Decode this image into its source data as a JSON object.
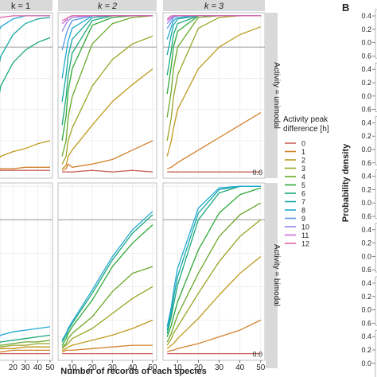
{
  "strips": {
    "top": [
      "k = 1",
      "k = 2",
      "k = 3"
    ],
    "right": [
      "Activity = unimodal",
      "Activity = bimodal"
    ]
  },
  "panel_b_label": "B",
  "panel_b_ylabel": "Probability density",
  "panel_b_ticks": [
    "0.4",
    "0.2",
    "0.0",
    "0.6",
    "0.4",
    "0.2",
    "0.0",
    "0.6",
    "0.4",
    "0.2",
    "0.0",
    "0.6",
    "0.4",
    "0.2",
    "0.0",
    "0.6",
    "0.4",
    "0.2",
    "0.0",
    "0.6",
    "0.4",
    "0.2",
    "0.0",
    "0.6",
    "0.4",
    "0.2",
    "0.0"
  ],
  "legend": {
    "title_line1": "Activity peak",
    "title_line2": "difference [h]",
    "items": [
      {
        "label": "0",
        "color": "#c8635e"
      },
      {
        "label": "1",
        "color": "#d3812c"
      },
      {
        "label": "2",
        "color": "#bf9a1d"
      },
      {
        "label": "3",
        "color": "#9aa423"
      },
      {
        "label": "4",
        "color": "#6aa82a"
      },
      {
        "label": "5",
        "color": "#2ea836"
      },
      {
        "label": "6",
        "color": "#1aa879"
      },
      {
        "label": "7",
        "color": "#16a6a6"
      },
      {
        "label": "8",
        "color": "#22a8d4"
      },
      {
        "label": "9",
        "color": "#5a96e6"
      },
      {
        "label": "10",
        "color": "#9a80e6"
      },
      {
        "label": "11",
        "color": "#cc6cd8"
      },
      {
        "label": "12",
        "color": "#e064a8"
      }
    ]
  },
  "chart_data": {
    "type": "line",
    "xlabel": "Number of records of each species",
    "x_ticks": [
      "10",
      "20",
      "30",
      "40",
      "50"
    ],
    "y_ticks": [
      "0.0"
    ],
    "x": [
      5,
      7,
      8,
      10,
      20,
      30,
      40,
      50
    ],
    "xlim": [
      3,
      52
    ],
    "ylim": [
      -0.04,
      1.02
    ],
    "reference_line": 0.8,
    "panels": [
      {
        "row": "unimodal",
        "col": "k = 1",
        "series": [
          {
            "color": "#1aa879",
            "values": [
              0.35,
              0.42,
              0.46,
              0.55,
              0.7,
              0.78,
              0.83,
              0.86
            ]
          },
          {
            "color": "#16a6a6",
            "values": [
              0.55,
              0.62,
              0.66,
              0.74,
              0.88,
              0.95,
              0.98,
              0.99
            ]
          },
          {
            "color": "#22a8d4",
            "values": [
              0.8,
              0.86,
              0.89,
              0.93,
              0.98,
              1.0,
              1.0,
              1.0
            ]
          },
          {
            "color": "#e064a8",
            "values": [
              0.95,
              0.97,
              0.98,
              0.99,
              1.0,
              1.0,
              1.0,
              1.0
            ]
          },
          {
            "color": "#bf9a1d",
            "values": [
              0.05,
              0.07,
              0.08,
              0.1,
              0.13,
              0.15,
              0.18,
              0.2
            ]
          },
          {
            "color": "#d3812c",
            "values": [
              0.02,
              0.02,
              0.02,
              0.02,
              0.02,
              0.03,
              0.03,
              0.03
            ]
          },
          {
            "color": "#c8635e",
            "values": [
              0.01,
              0.01,
              0.01,
              0.01,
              0.01,
              0.01,
              0.01,
              0.01
            ]
          }
        ]
      },
      {
        "row": "unimodal",
        "col": "k = 2",
        "series": [
          {
            "color": "#c8635e",
            "values": [
              0.0,
              0.0,
              0.0,
              0.0,
              0.01,
              0.0,
              0.01,
              0.0
            ]
          },
          {
            "color": "#d3812c",
            "values": [
              0.01,
              0.02,
              0.05,
              0.03,
              0.05,
              0.08,
              0.14,
              0.2
            ]
          },
          {
            "color": "#bf9a1d",
            "values": [
              0.02,
              0.04,
              0.1,
              0.14,
              0.3,
              0.45,
              0.56,
              0.66
            ]
          },
          {
            "color": "#9aa423",
            "values": [
              0.05,
              0.1,
              0.2,
              0.28,
              0.55,
              0.72,
              0.82,
              0.87
            ]
          },
          {
            "color": "#6aa82a",
            "values": [
              0.1,
              0.2,
              0.35,
              0.48,
              0.82,
              0.95,
              0.99,
              1.0
            ]
          },
          {
            "color": "#2ea836",
            "values": [
              0.2,
              0.36,
              0.52,
              0.66,
              0.94,
              0.99,
              1.0,
              1.0
            ]
          },
          {
            "color": "#1aa879",
            "values": [
              0.3,
              0.48,
              0.62,
              0.76,
              0.97,
              1.0,
              1.0,
              1.0
            ]
          },
          {
            "color": "#16a6a6",
            "values": [
              0.45,
              0.62,
              0.74,
              0.85,
              0.99,
              1.0,
              1.0,
              1.0
            ]
          },
          {
            "color": "#22a8d4",
            "values": [
              0.6,
              0.76,
              0.84,
              0.92,
              1.0,
              1.0,
              1.0,
              1.0
            ]
          },
          {
            "color": "#5a96e6",
            "values": [
              0.78,
              0.88,
              0.92,
              0.97,
              1.0,
              1.0,
              1.0,
              1.0
            ]
          },
          {
            "color": "#9a80e6",
            "values": [
              0.9,
              0.95,
              0.97,
              0.99,
              1.0,
              1.0,
              1.0,
              1.0
            ]
          },
          {
            "color": "#cc6cd8",
            "values": [
              0.95,
              0.97,
              0.99,
              1.0,
              1.0,
              1.0,
              1.0,
              1.0
            ]
          },
          {
            "color": "#e064a8",
            "values": [
              0.97,
              0.98,
              0.99,
              1.0,
              1.0,
              1.0,
              1.0,
              1.0
            ]
          }
        ]
      },
      {
        "row": "unimodal",
        "col": "k = 3",
        "series": [
          {
            "color": "#c8635e",
            "values": [
              0.0,
              0.0,
              0.0,
              0.0,
              0.0,
              0.0,
              0.0,
              0.0
            ]
          },
          {
            "color": "#d3812c",
            "values": [
              0.02,
              0.03,
              0.04,
              0.06,
              0.14,
              0.22,
              0.3,
              0.38
            ]
          },
          {
            "color": "#bf9a1d",
            "values": [
              0.1,
              0.2,
              0.28,
              0.4,
              0.66,
              0.8,
              0.88,
              0.93
            ]
          },
          {
            "color": "#9aa423",
            "values": [
              0.2,
              0.35,
              0.48,
              0.62,
              0.92,
              0.99,
              1.0,
              1.0
            ]
          },
          {
            "color": "#6aa82a",
            "values": [
              0.35,
              0.52,
              0.66,
              0.8,
              0.99,
              1.0,
              1.0,
              1.0
            ]
          },
          {
            "color": "#2ea836",
            "values": [
              0.5,
              0.68,
              0.8,
              0.9,
              1.0,
              1.0,
              1.0,
              1.0
            ]
          },
          {
            "color": "#1aa879",
            "values": [
              0.62,
              0.78,
              0.88,
              0.95,
              1.0,
              1.0,
              1.0,
              1.0
            ]
          },
          {
            "color": "#16a6a6",
            "values": [
              0.75,
              0.88,
              0.94,
              0.98,
              1.0,
              1.0,
              1.0,
              1.0
            ]
          },
          {
            "color": "#22a8d4",
            "values": [
              0.85,
              0.93,
              0.97,
              0.99,
              1.0,
              1.0,
              1.0,
              1.0
            ]
          },
          {
            "color": "#5a96e6",
            "values": [
              0.92,
              0.96,
              0.99,
              1.0,
              1.0,
              1.0,
              1.0,
              1.0
            ]
          },
          {
            "color": "#9a80e6",
            "values": [
              0.95,
              0.98,
              1.0,
              1.0,
              1.0,
              1.0,
              1.0,
              1.0
            ]
          },
          {
            "color": "#cc6cd8",
            "values": [
              0.97,
              0.99,
              1.0,
              1.0,
              1.0,
              1.0,
              1.0,
              1.0
            ]
          },
          {
            "color": "#e064a8",
            "values": [
              0.98,
              1.0,
              1.0,
              1.0,
              1.0,
              1.0,
              1.0,
              1.0
            ]
          }
        ]
      },
      {
        "row": "bimodal",
        "col": "k = 1",
        "series": [
          {
            "color": "#c8635e",
            "values": [
              0.0,
              0.0,
              0.0,
              0.0,
              0.0,
              0.0,
              0.0,
              0.0
            ]
          },
          {
            "color": "#d3812c",
            "values": [
              0.01,
              0.01,
              0.01,
              0.01,
              0.02,
              0.02,
              0.02,
              0.02
            ]
          },
          {
            "color": "#bf9a1d",
            "values": [
              0.02,
              0.02,
              0.03,
              0.03,
              0.03,
              0.04,
              0.04,
              0.04
            ]
          },
          {
            "color": "#9aa423",
            "values": [
              0.03,
              0.03,
              0.04,
              0.04,
              0.05,
              0.05,
              0.06,
              0.06
            ]
          },
          {
            "color": "#6aa82a",
            "values": [
              0.03,
              0.04,
              0.05,
              0.05,
              0.06,
              0.07,
              0.07,
              0.08
            ]
          },
          {
            "color": "#1aa879",
            "values": [
              0.05,
              0.06,
              0.06,
              0.07,
              0.08,
              0.09,
              0.1,
              0.11
            ]
          },
          {
            "color": "#22a8d4",
            "values": [
              0.08,
              0.1,
              0.1,
              0.11,
              0.13,
              0.14,
              0.15,
              0.16
            ]
          }
        ]
      },
      {
        "row": "bimodal",
        "col": "k = 2",
        "series": [
          {
            "color": "#c8635e",
            "values": [
              0.0,
              0.0,
              0.0,
              0.0,
              0.0,
              0.0,
              0.0,
              0.0
            ]
          },
          {
            "color": "#d3812c",
            "values": [
              0.01,
              0.02,
              0.02,
              0.02,
              0.03,
              0.04,
              0.05,
              0.05
            ]
          },
          {
            "color": "#bf9a1d",
            "values": [
              0.02,
              0.03,
              0.04,
              0.05,
              0.08,
              0.11,
              0.15,
              0.2
            ]
          },
          {
            "color": "#9aa423",
            "values": [
              0.03,
              0.05,
              0.06,
              0.09,
              0.15,
              0.24,
              0.33,
              0.4
            ]
          },
          {
            "color": "#6aa82a",
            "values": [
              0.04,
              0.06,
              0.09,
              0.12,
              0.22,
              0.37,
              0.48,
              0.52
            ]
          },
          {
            "color": "#2ea836",
            "values": [
              0.05,
              0.09,
              0.12,
              0.16,
              0.32,
              0.52,
              0.66,
              0.77
            ]
          },
          {
            "color": "#1aa879",
            "values": [
              0.07,
              0.11,
              0.14,
              0.18,
              0.36,
              0.56,
              0.72,
              0.83
            ]
          },
          {
            "color": "#22a8d4",
            "values": [
              0.08,
              0.12,
              0.15,
              0.19,
              0.38,
              0.58,
              0.74,
              0.85
            ]
          }
        ]
      },
      {
        "row": "bimodal",
        "col": "k = 3",
        "series": [
          {
            "color": "#c8635e",
            "values": [
              0.0,
              0.0,
              0.0,
              0.0,
              0.0,
              0.0,
              0.0,
              0.0
            ]
          },
          {
            "color": "#d3812c",
            "values": [
              0.01,
              0.02,
              0.02,
              0.03,
              0.06,
              0.1,
              0.14,
              0.2
            ]
          },
          {
            "color": "#bf9a1d",
            "values": [
              0.03,
              0.05,
              0.06,
              0.09,
              0.21,
              0.35,
              0.48,
              0.58
            ]
          },
          {
            "color": "#9aa423",
            "values": [
              0.05,
              0.09,
              0.12,
              0.16,
              0.36,
              0.55,
              0.7,
              0.8
            ]
          },
          {
            "color": "#6aa82a",
            "values": [
              0.07,
              0.12,
              0.16,
              0.23,
              0.48,
              0.7,
              0.83,
              0.9
            ]
          },
          {
            "color": "#2ea836",
            "values": [
              0.1,
              0.17,
              0.22,
              0.31,
              0.62,
              0.84,
              0.95,
              0.99
            ]
          },
          {
            "color": "#1aa879",
            "values": [
              0.12,
              0.22,
              0.29,
              0.41,
              0.8,
              0.96,
              1.0,
              1.0
            ]
          },
          {
            "color": "#16a6a6",
            "values": [
              0.14,
              0.25,
              0.33,
              0.46,
              0.84,
              0.98,
              1.0,
              1.0
            ]
          },
          {
            "color": "#22a8d4",
            "values": [
              0.16,
              0.28,
              0.37,
              0.51,
              0.87,
              0.99,
              1.0,
              1.0
            ]
          }
        ]
      }
    ]
  }
}
